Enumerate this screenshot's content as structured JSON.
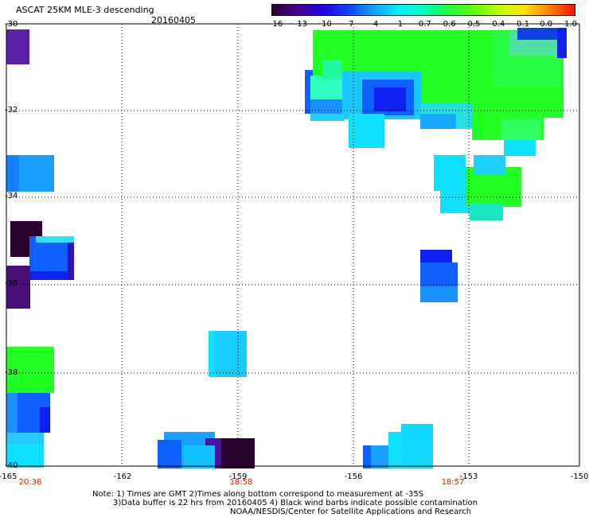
{
  "header": {
    "title": "ASCAT 25KM MLE-3 descending",
    "date": "20160405"
  },
  "colorbar": {
    "ticks": [
      "-16",
      "-13",
      "-10",
      "-7",
      "-4",
      "-1",
      "-0.7",
      "-0.6",
      "-0.5",
      "-0.4",
      "-0.1",
      "0.0",
      "1.0"
    ],
    "colors": [
      "#2a0030",
      "#4a0090",
      "#2000e0",
      "#1040ff",
      "#10a0ff",
      "#00f0ff",
      "#00ffc0",
      "#20ff40",
      "#60ff00",
      "#c0ff00",
      "#ffe000",
      "#ff8000",
      "#ff1000"
    ]
  },
  "map": {
    "lat_labels": [
      "-30",
      "-32",
      "-34",
      "-36",
      "-38",
      "-40"
    ],
    "lon_labels": [
      "-165",
      "-162",
      "-159",
      "-156",
      "-153",
      "-150"
    ],
    "time_labels": [
      "20:38",
      "18:58",
      "18:57"
    ]
  },
  "notes": {
    "line1": "Note: 1) Times are GMT 2)Times along bottom correspond to measurement at -35S",
    "line2": "3)Data buffer is 22 hrs from 20160405 4) Black wind barbs indicate possible contamination",
    "line3": "NOAA/NESDIS/Center for Satellite Applications and Research"
  }
}
